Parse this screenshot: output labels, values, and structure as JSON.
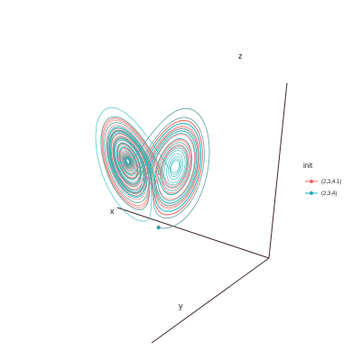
{
  "chart_data": {
    "type": "line",
    "subtype": "3d-trajectory",
    "axes": {
      "x_label": "x",
      "y_label": "y",
      "z_label": "z"
    },
    "grid": false,
    "legend": {
      "title": "init",
      "placement": "right",
      "entries": [
        {
          "label": "(2,3,4.1)",
          "color": "#f0605a"
        },
        {
          "label": "(2,3,4)",
          "color": "#17b3b8"
        }
      ]
    },
    "series": [
      {
        "name": "(2,3,4.1)",
        "color": "#f0605a",
        "start": [
          2,
          3,
          4.1
        ]
      },
      {
        "name": "(2,3,4)",
        "color": "#17b3b8",
        "start": [
          2,
          3,
          4
        ]
      }
    ]
  }
}
